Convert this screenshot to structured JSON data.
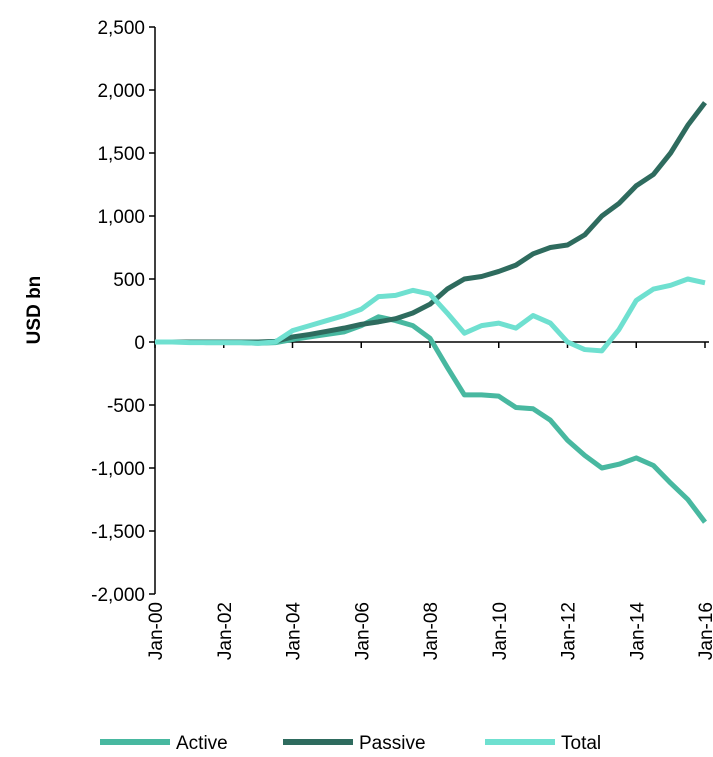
{
  "chart_data": {
    "type": "line",
    "y_label": "USD bn",
    "categories": [
      "Jan-00",
      null,
      null,
      null,
      "Jan-02",
      null,
      null,
      null,
      "Jan-04",
      null,
      null,
      null,
      "Jan-06",
      null,
      null,
      null,
      "Jan-08",
      null,
      null,
      null,
      "Jan-10",
      null,
      null,
      null,
      "Jan-12",
      null,
      null,
      null,
      "Jan-14",
      null,
      null,
      null,
      "Jan-16"
    ],
    "series": [
      {
        "name": "Active",
        "color": "#48b8a0",
        "values": [
          0,
          0,
          0,
          -5,
          -5,
          -5,
          -10,
          -5,
          20,
          40,
          60,
          80,
          130,
          200,
          170,
          130,
          30,
          -200,
          -420,
          -420,
          -430,
          -520,
          -530,
          -620,
          -780,
          -900,
          -1000,
          -970,
          -920,
          -980,
          -1120,
          -1250,
          -1430
        ]
      },
      {
        "name": "Passive",
        "color": "#2e6b5e",
        "values": [
          0,
          0,
          0,
          0,
          0,
          0,
          0,
          5,
          40,
          60,
          85,
          110,
          140,
          160,
          185,
          230,
          300,
          420,
          500,
          520,
          560,
          610,
          700,
          750,
          770,
          850,
          1000,
          1100,
          1240,
          1330,
          1500,
          1720,
          1900
        ]
      },
      {
        "name": "Total",
        "color": "#6fe0d0",
        "values": [
          0,
          0,
          -5,
          -5,
          -5,
          -5,
          -10,
          0,
          90,
          130,
          170,
          210,
          260,
          360,
          370,
          410,
          380,
          230,
          70,
          130,
          150,
          110,
          210,
          150,
          0,
          -60,
          -70,
          100,
          330,
          420,
          450,
          500,
          470
        ]
      }
    ],
    "ylim": [
      -2000,
      2500
    ],
    "yticks": [
      {
        "value": -2000,
        "label": "-2,000"
      },
      {
        "value": -1500,
        "label": "-1,500"
      },
      {
        "value": -1000,
        "label": "-1,000"
      },
      -500,
      0,
      500,
      {
        "value": 1000,
        "label": "1,000"
      },
      {
        "value": 1500,
        "label": "1,500"
      },
      {
        "value": 2000,
        "label": "2,000"
      },
      {
        "value": 2500,
        "label": "2,500"
      }
    ],
    "legend": "bottom"
  }
}
